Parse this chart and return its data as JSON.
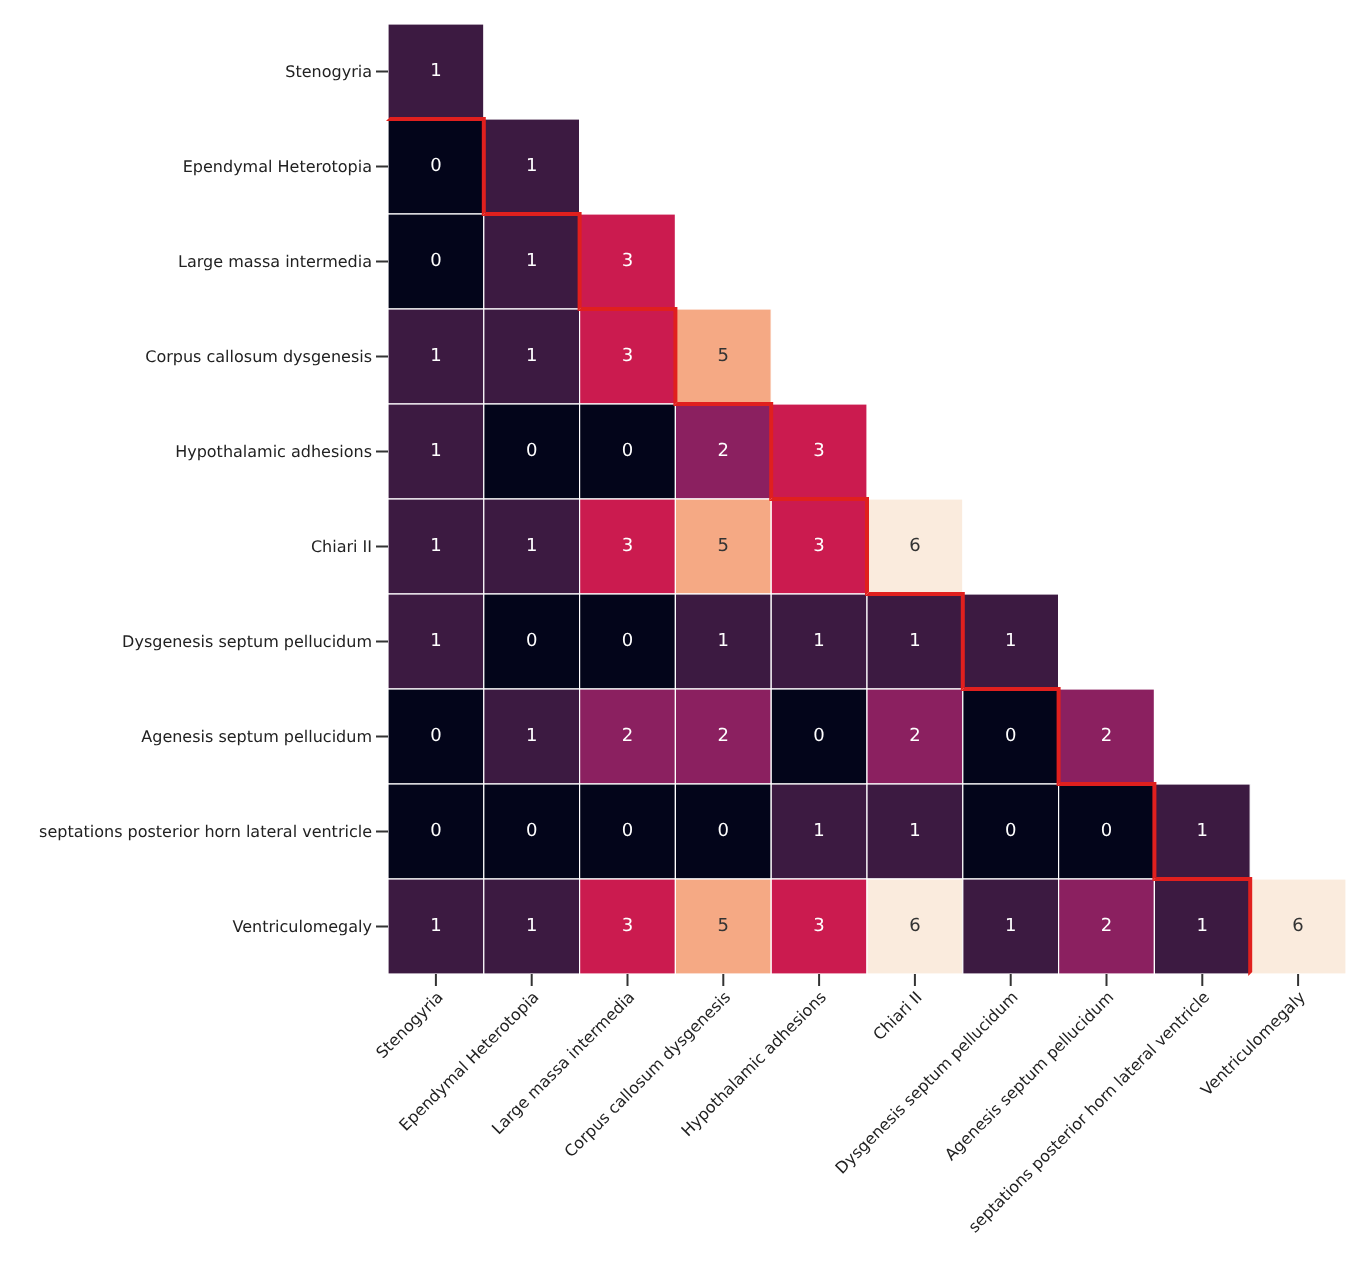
{
  "chart_data": {
    "type": "heatmap",
    "categories": [
      "Stenogyria",
      "Ependymal Heterotopia",
      "Large massa intermedia",
      "Corpus callosum dysgenesis",
      "Hypothalamic adhesions",
      "Chiari II",
      "Dysgenesis septum pellucidum",
      "Agenesis septum pellucidum",
      "septations posterior horn lateral ventricle",
      "Ventriculomegaly"
    ],
    "y_categories": [
      "Stenogyria",
      "Ependymal Heterotopia",
      "Large massa intermedia",
      "Corpus callosum dysgenesis",
      "Hypothalamic adhesions",
      "Chiari II",
      "Dysgenesis septum pellucidum",
      "Agenesis septum pellucidum",
      "septations posterior horn lateral ventricle",
      "Ventriculomegaly"
    ],
    "cells": [
      [
        1,
        null,
        null,
        null,
        null,
        null,
        null,
        null,
        null,
        null
      ],
      [
        0,
        1,
        null,
        null,
        null,
        null,
        null,
        null,
        null,
        null
      ],
      [
        0,
        1,
        3,
        null,
        null,
        null,
        null,
        null,
        null,
        null
      ],
      [
        1,
        1,
        3,
        5,
        null,
        null,
        null,
        null,
        null,
        null
      ],
      [
        1,
        0,
        0,
        2,
        3,
        null,
        null,
        null,
        null,
        null
      ],
      [
        1,
        1,
        3,
        5,
        3,
        6,
        null,
        null,
        null,
        null
      ],
      [
        1,
        0,
        0,
        1,
        1,
        1,
        1,
        null,
        null,
        null
      ],
      [
        0,
        1,
        2,
        2,
        0,
        2,
        0,
        2,
        null,
        null
      ],
      [
        0,
        0,
        0,
        0,
        1,
        1,
        0,
        0,
        1,
        null
      ],
      [
        1,
        1,
        3,
        5,
        3,
        6,
        1,
        2,
        1,
        6
      ]
    ],
    "data_labels": true
  }
}
